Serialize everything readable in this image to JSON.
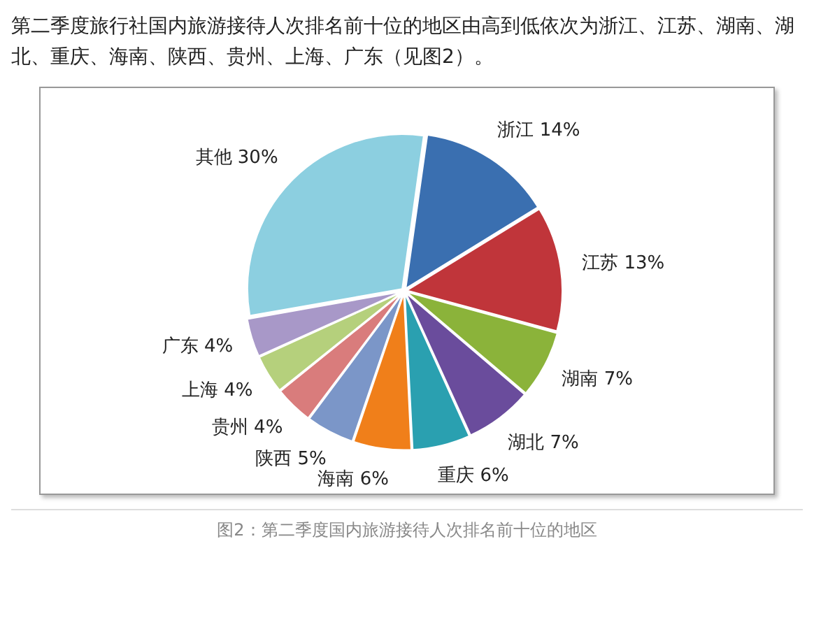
{
  "chart_data": {
    "type": "pie",
    "title": "第二季度旅行社国内旅游接待人次排名前十位的地区由高到低依次为浙江、江苏、湖南、湖北、重庆、海南、陕西、贵州、上海、广东（见图2）。",
    "categories": [
      "浙江",
      "江苏",
      "湖南",
      "湖北",
      "重庆",
      "海南",
      "陕西",
      "贵州",
      "上海",
      "广东",
      "其他"
    ],
    "values": [
      14,
      13,
      7,
      7,
      6,
      6,
      5,
      4,
      4,
      4,
      30
    ],
    "value_labels": [
      "14%",
      "13%",
      "7%",
      "7%",
      "6%",
      "6%",
      "5%",
      "4%",
      "4%",
      "4%",
      "30%"
    ],
    "colors": [
      "#3a6fb0",
      "#c0353a",
      "#8bb33a",
      "#6a4c9c",
      "#2aa0b0",
      "#f07f1a",
      "#7b96c8",
      "#d97c7c",
      "#b5d07c",
      "#a898c8",
      "#8ccfe0"
    ],
    "legend": false,
    "annotations": [
      "图2：第二季度国内旅游接待人次排名前十位的地区"
    ]
  }
}
